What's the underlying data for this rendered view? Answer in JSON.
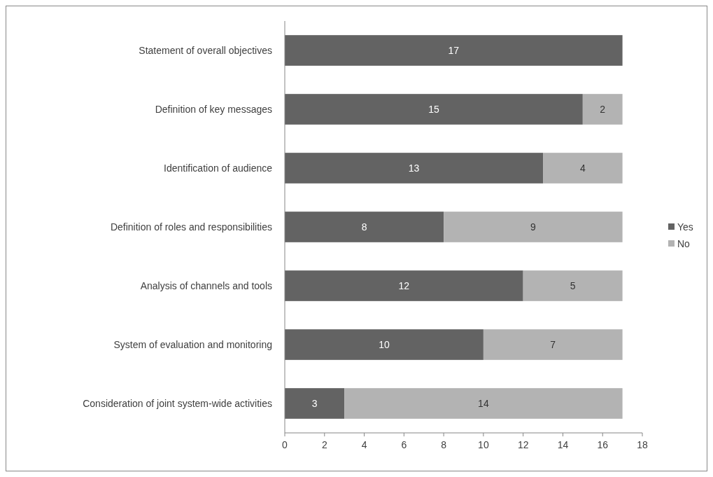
{
  "chart_data": {
    "type": "bar",
    "orientation": "horizontal",
    "stacked": true,
    "categories": [
      "Statement of overall objectives",
      "Definition of key messages",
      "Identification of audience",
      "Definition of roles and responsibilities",
      "Analysis of channels and tools",
      "System of evaluation and monitoring",
      "Consideration of joint system-wide activities"
    ],
    "series": [
      {
        "name": "Yes",
        "color": "#636363",
        "values": [
          17,
          15,
          13,
          8,
          12,
          10,
          3
        ],
        "value_labels": [
          "17",
          "15",
          "13",
          "8",
          "12",
          "10",
          "3"
        ]
      },
      {
        "name": "No",
        "color": "#b3b3b3",
        "values": [
          0,
          2,
          4,
          9,
          5,
          7,
          14
        ],
        "value_labels": [
          null,
          "2",
          "4",
          "9",
          "5",
          "7",
          "14"
        ]
      }
    ],
    "xlim": [
      0,
      18
    ],
    "xticks": [
      0,
      2,
      4,
      6,
      8,
      10,
      12,
      14,
      16,
      18
    ],
    "grid": false,
    "legend": "right"
  }
}
